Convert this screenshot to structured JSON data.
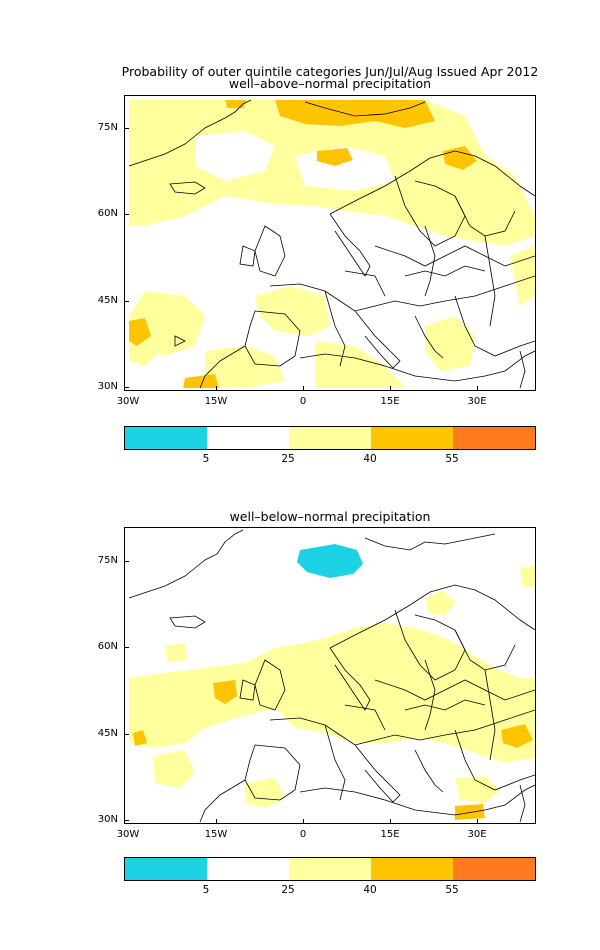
{
  "figure": {
    "main_title": "Probability of outer quintile categories Jun/Jul/Aug Issued Apr 2012"
  },
  "panels": [
    {
      "subtitle": "well–above–normal precipitation"
    },
    {
      "subtitle": "well–below–normal precipitation"
    }
  ],
  "axes": {
    "lat_labels": [
      "75N",
      "60N",
      "45N",
      "30N"
    ],
    "lon_labels": [
      "30W",
      "15W",
      "0",
      "15E",
      "30E"
    ]
  },
  "colorbar": {
    "colors": [
      "#1ed2e6",
      "#ffffff",
      "#ffff9e",
      "#ffc400",
      "#ff7a1f"
    ],
    "tick_labels": [
      "5",
      "25",
      "40",
      "55"
    ]
  }
}
